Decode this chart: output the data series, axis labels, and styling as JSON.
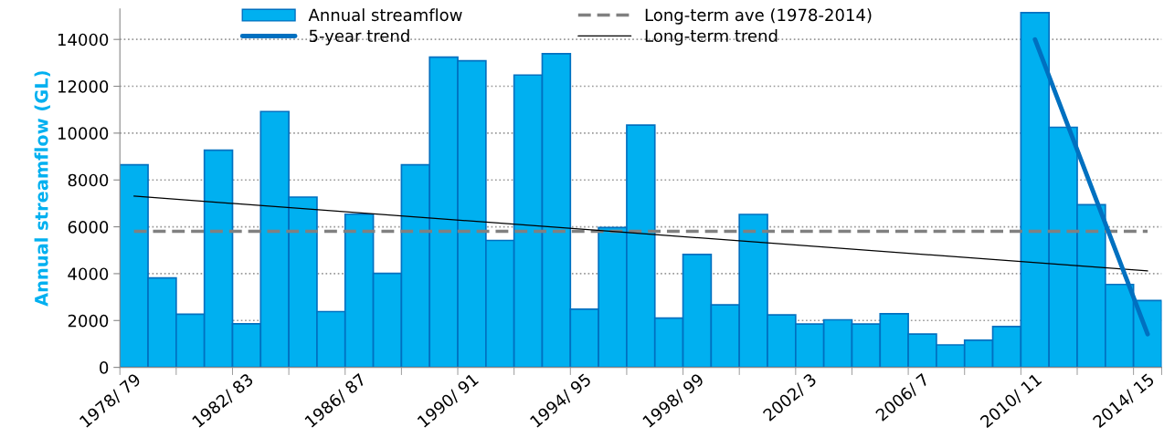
{
  "chart_data": {
    "type": "bar",
    "ylabel": "Annual streamflow (GL)",
    "categories": [
      "1978/ 79",
      null,
      null,
      null,
      "1982/ 83",
      null,
      null,
      null,
      "1986/ 87",
      null,
      null,
      null,
      "1990/ 91",
      null,
      null,
      null,
      "1994/ 95",
      null,
      null,
      null,
      "1998/ 99",
      null,
      null,
      null,
      "2002/ 3",
      null,
      null,
      null,
      "2006/ 7",
      null,
      null,
      null,
      "2010/ 11",
      null,
      null,
      null,
      "2014/ 15"
    ],
    "series": [
      {
        "name": "Annual streamflow",
        "color": "#00b0f0",
        "values": [
          8650,
          3820,
          2270,
          9270,
          1860,
          10920,
          7270,
          2380,
          6540,
          4010,
          8650,
          13240,
          13090,
          5420,
          12480,
          13390,
          2480,
          5970,
          10340,
          2100,
          4820,
          2670,
          6530,
          2240,
          1850,
          2030,
          1850,
          2290,
          1420,
          960,
          1160,
          1740,
          15140,
          10250,
          6940,
          3540,
          2850
        ]
      },
      {
        "name": "5-year trend",
        "type": "line",
        "color": "#0070c0",
        "line_style": "solid",
        "values": [
          null,
          null,
          null,
          null,
          null,
          null,
          null,
          null,
          null,
          null,
          null,
          null,
          null,
          null,
          null,
          null,
          null,
          null,
          null,
          null,
          null,
          null,
          null,
          null,
          null,
          null,
          null,
          null,
          null,
          null,
          null,
          null,
          14000,
          null,
          null,
          null,
          1420
        ]
      },
      {
        "name": "Long-term ave (1978-2014)",
        "type": "line",
        "color": "#808080",
        "line_style": "dashed",
        "values": [
          5810,
          5810,
          5810,
          5810,
          5810,
          5810,
          5810,
          5810,
          5810,
          5810,
          5810,
          5810,
          5810,
          5810,
          5810,
          5810,
          5810,
          5810,
          5810,
          5810,
          5810,
          5810,
          5810,
          5810,
          5810,
          5810,
          5810,
          5810,
          5810,
          5810,
          5810,
          5810,
          5810,
          5810,
          5810,
          5810,
          5810
        ]
      },
      {
        "name": "Long-term trend",
        "type": "line",
        "color": "#000000",
        "line_style": "solid",
        "values": [
          7310,
          null,
          null,
          null,
          null,
          null,
          null,
          null,
          null,
          null,
          null,
          null,
          null,
          null,
          null,
          null,
          null,
          null,
          null,
          null,
          null,
          null,
          null,
          null,
          null,
          null,
          null,
          null,
          null,
          null,
          null,
          null,
          null,
          null,
          null,
          null,
          4120
        ]
      }
    ],
    "ylim": [
      0,
      15300
    ],
    "yticks": [
      0,
      2000,
      4000,
      6000,
      8000,
      10000,
      12000,
      14000
    ],
    "grid": "y",
    "legend": "top"
  }
}
